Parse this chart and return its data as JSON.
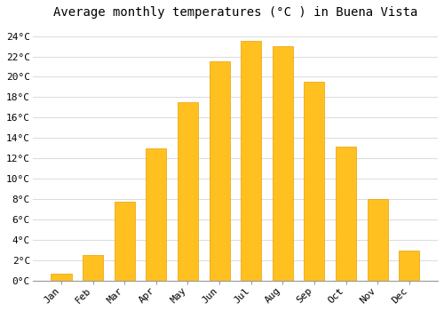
{
  "title": "Average monthly temperatures (°C ) in Buena Vista",
  "months": [
    "Jan",
    "Feb",
    "Mar",
    "Apr",
    "May",
    "Jun",
    "Jul",
    "Aug",
    "Sep",
    "Oct",
    "Nov",
    "Dec"
  ],
  "values": [
    0.7,
    2.5,
    7.8,
    13.0,
    17.5,
    21.5,
    23.5,
    23.0,
    19.5,
    13.2,
    8.0,
    3.0
  ],
  "bar_color": "#FFC020",
  "bar_edge_color": "#E8A000",
  "background_color": "#FFFFFF",
  "grid_color": "#DDDDDD",
  "ylim": [
    0,
    25
  ],
  "yticks": [
    0,
    2,
    4,
    6,
    8,
    10,
    12,
    14,
    16,
    18,
    20,
    22,
    24
  ],
  "title_fontsize": 10,
  "tick_fontsize": 8,
  "bar_width": 0.65
}
